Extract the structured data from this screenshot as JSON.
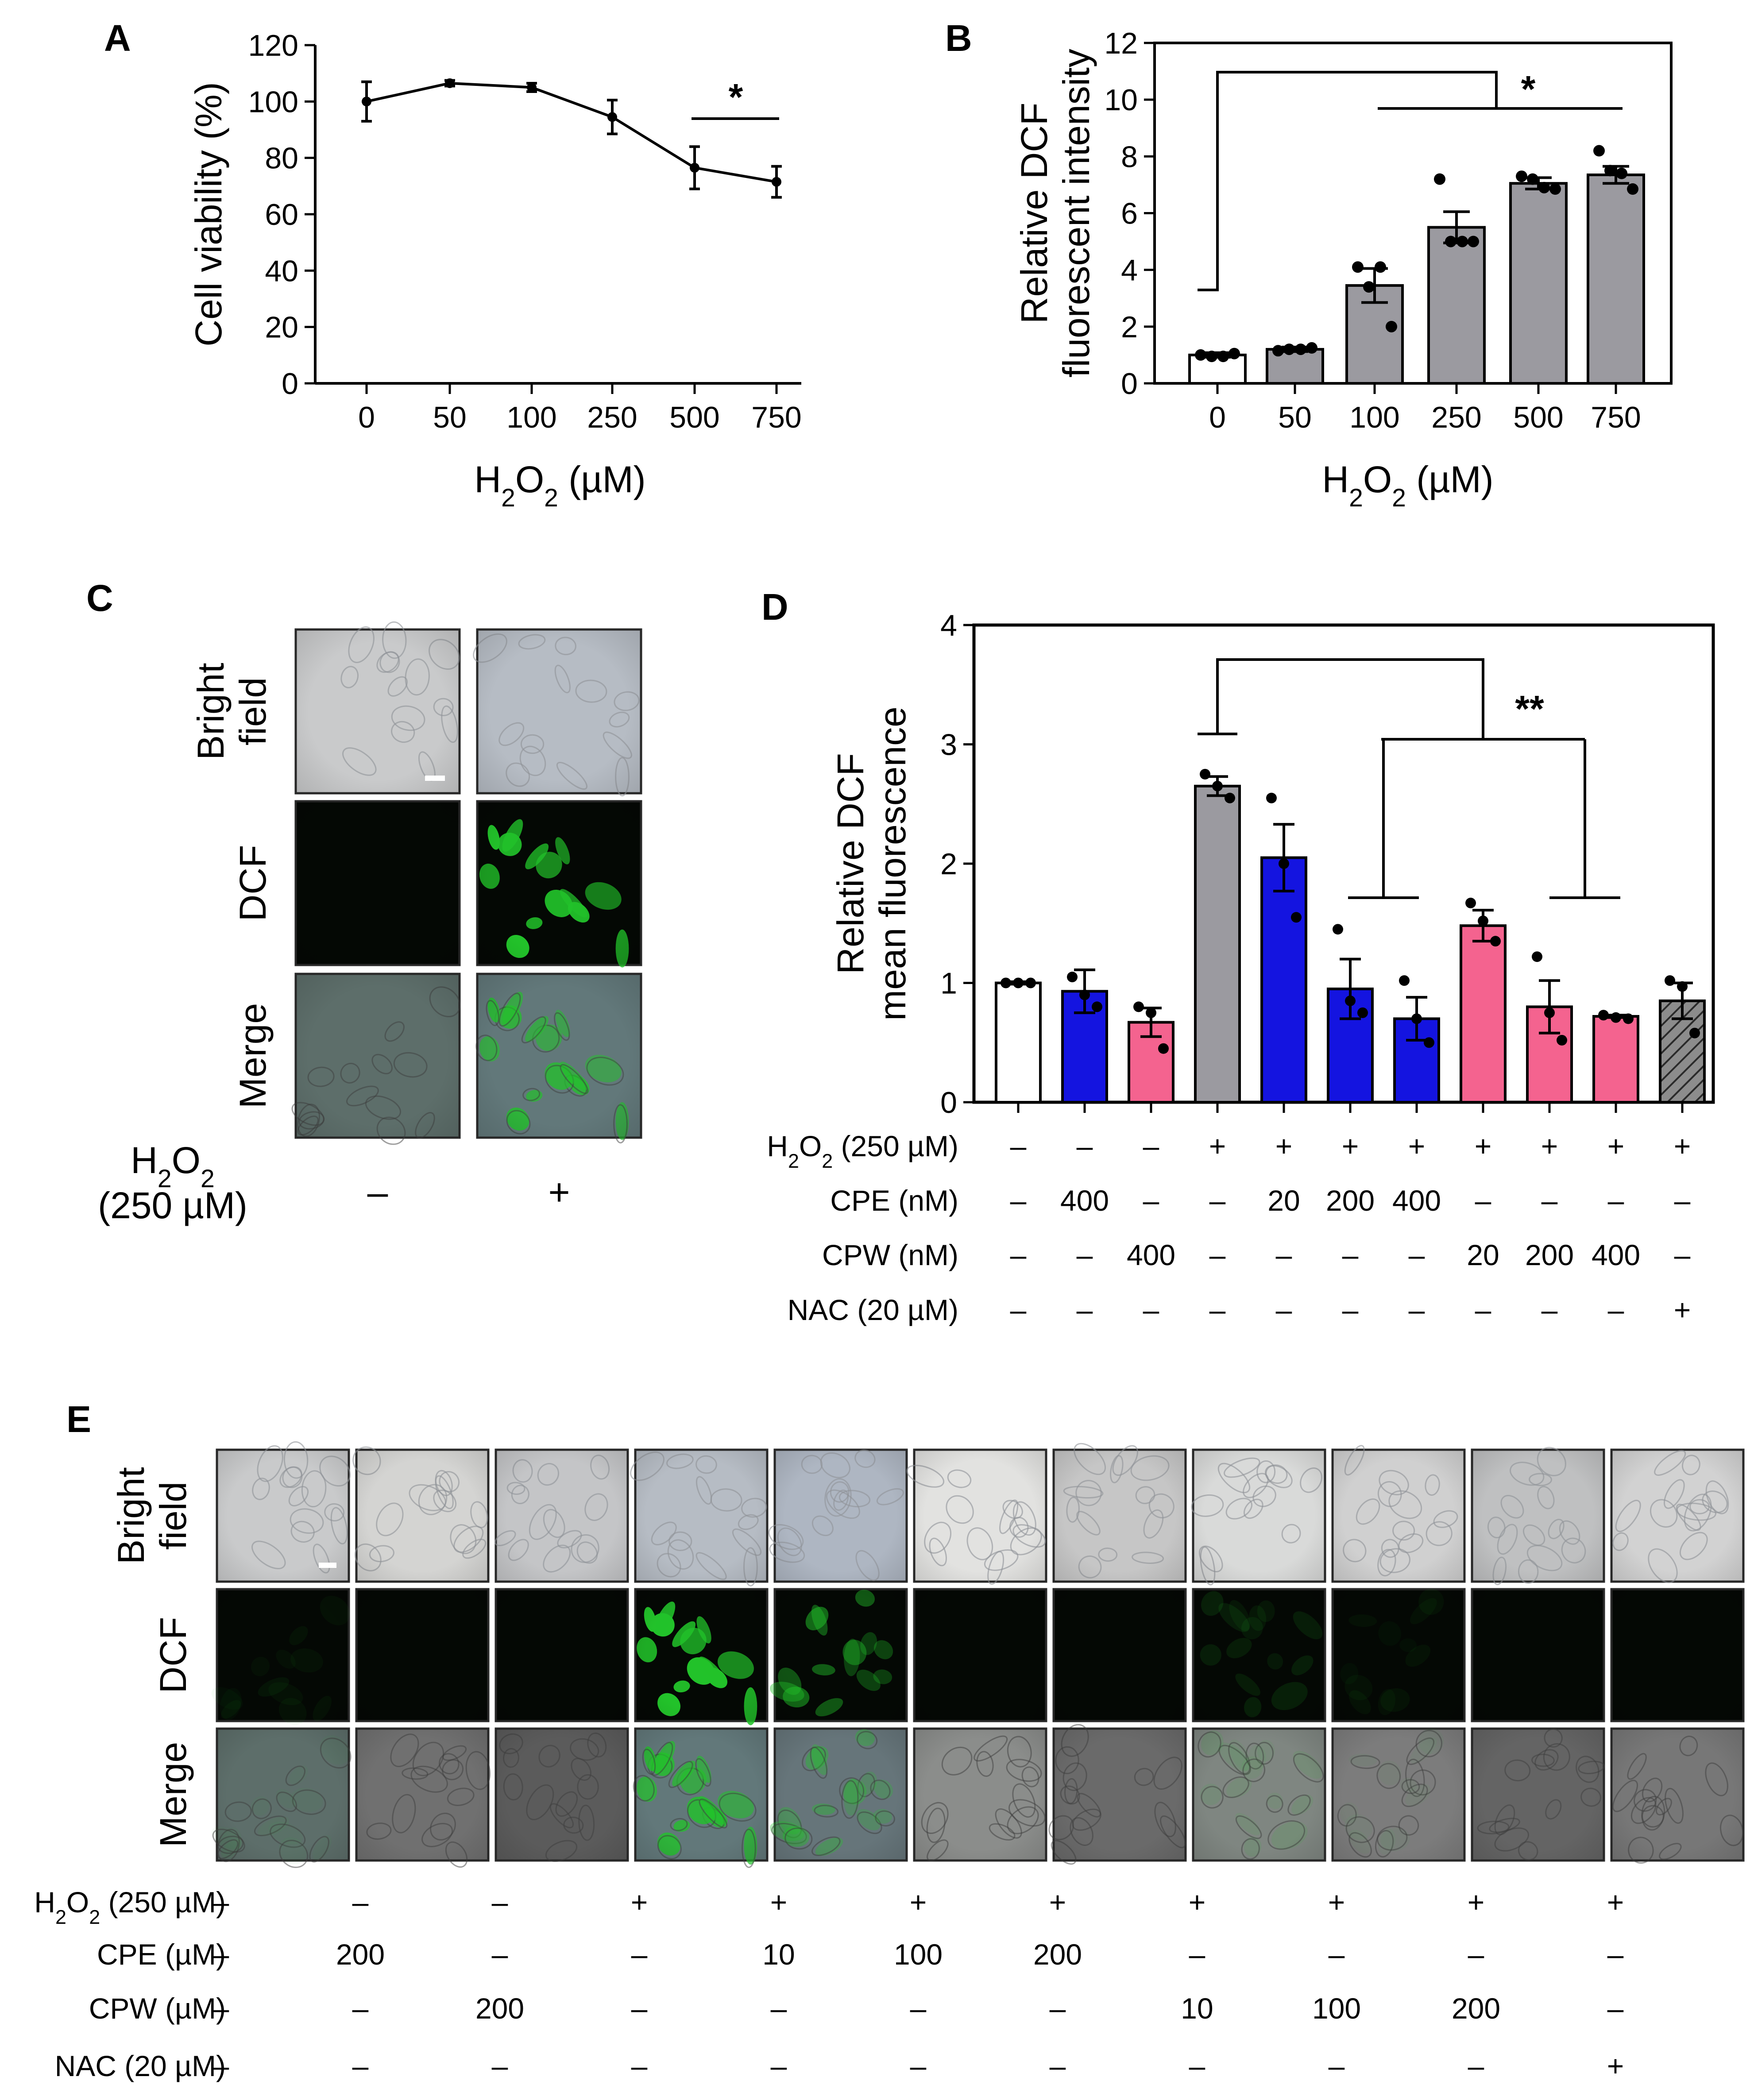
{
  "colors": {
    "white": "#ffffff",
    "grey": "#9b9aa0",
    "blue": "#1414e0",
    "pink": "#f4638f",
    "black": "#000000"
  },
  "panels": {
    "A": "A",
    "B": "B",
    "C": "C",
    "D": "D",
    "E": "E"
  },
  "chart_data": [
    {
      "panel": "A",
      "type": "line",
      "categories": [
        "0",
        "50",
        "100",
        "250",
        "500",
        "750"
      ],
      "values": [
        100,
        106.5,
        105,
        94.5,
        76.5,
        71.5
      ],
      "errors": [
        7,
        1,
        1.5,
        6,
        7.5,
        5.5
      ],
      "ylabel": "Cell viability (%)",
      "xlabel": {
        "pre": "H",
        "sub1": "2",
        "mid": "O",
        "sub2": "2",
        "post": " (µM)"
      },
      "yticks": [
        0,
        20,
        40,
        60,
        80,
        100,
        120
      ],
      "ylim": [
        0,
        120
      ],
      "significance": "*"
    },
    {
      "panel": "B",
      "type": "bar",
      "categories": [
        "0",
        "50",
        "100",
        "250",
        "500",
        "750"
      ],
      "values": [
        1.0,
        1.2,
        3.45,
        5.5,
        7.05,
        7.35
      ],
      "errors": [
        0.08,
        0.08,
        0.6,
        0.55,
        0.2,
        0.3
      ],
      "points": [
        [
          1.0,
          0.95,
          0.95,
          1.05
        ],
        [
          1.15,
          1.2,
          1.2,
          1.25
        ],
        [
          4.1,
          3.4,
          4.1,
          2.0
        ],
        [
          7.2,
          5.0,
          5.0,
          5.0
        ],
        [
          7.3,
          7.2,
          6.9,
          6.85
        ],
        [
          8.2,
          7.5,
          7.4,
          6.85
        ]
      ],
      "bar_colors": [
        "white",
        "grey",
        "grey",
        "grey",
        "grey",
        "grey"
      ],
      "ylabel_line1": "Relative DCF",
      "ylabel_line2": "fluorescent intensity",
      "xlabel": {
        "pre": "H",
        "sub1": "2",
        "mid": "O",
        "sub2": "2",
        "post": " (µM)"
      },
      "yticks": [
        0,
        2,
        4,
        6,
        8,
        10,
        12
      ],
      "ylim": [
        0,
        12
      ],
      "significance": "*"
    },
    {
      "panel": "D",
      "type": "bar",
      "values": [
        1.0,
        0.93,
        0.67,
        2.65,
        2.05,
        0.95,
        0.7,
        1.48,
        0.8,
        0.72,
        0.85
      ],
      "errors": [
        0.01,
        0.18,
        0.12,
        0.08,
        0.28,
        0.25,
        0.18,
        0.13,
        0.22,
        0.01,
        0.15
      ],
      "points": [
        [
          1.0,
          1.0,
          1.0
        ],
        [
          1.05,
          0.9,
          0.8
        ],
        [
          0.8,
          0.75,
          0.45
        ],
        [
          2.75,
          2.65,
          2.55
        ],
        [
          2.55,
          2.0,
          1.55
        ],
        [
          1.45,
          0.85,
          0.75
        ],
        [
          1.02,
          0.7,
          0.5
        ],
        [
          1.67,
          1.52,
          1.35
        ],
        [
          1.22,
          0.75,
          0.52
        ],
        [
          0.73,
          0.71,
          0.7
        ],
        [
          1.02,
          0.97,
          0.58
        ]
      ],
      "bar_colors": [
        "white",
        "blue",
        "pink",
        "grey",
        "blue",
        "blue",
        "blue",
        "pink",
        "pink",
        "pink",
        "hatched"
      ],
      "ylabel_line1": "Relative DCF",
      "ylabel_line2": "mean fluorescence",
      "yticks": [
        0,
        1,
        2,
        3,
        4
      ],
      "ylim": [
        0,
        4
      ],
      "significance": "**",
      "table": [
        {
          "label": {
            "pre": "H",
            "sub1": "2",
            "mid": "O",
            "sub2": "2",
            "post": " (250 µM)"
          },
          "cells": [
            "–",
            "–",
            "–",
            "+",
            "+",
            "+",
            "+",
            "+",
            "+",
            "+",
            "+"
          ]
        },
        {
          "label": "CPE (nM)",
          "cells": [
            "–",
            "400",
            "–",
            "–",
            "20",
            "200",
            "400",
            "–",
            "–",
            "–",
            "–"
          ]
        },
        {
          "label": "CPW (nM)",
          "cells": [
            "–",
            "–",
            "400",
            "–",
            "–",
            "–",
            "–",
            "20",
            "200",
            "400",
            "–"
          ]
        },
        {
          "label": "NAC (20 µM)",
          "cells": [
            "–",
            "–",
            "–",
            "–",
            "–",
            "–",
            "–",
            "–",
            "–",
            "–",
            "+"
          ]
        }
      ]
    }
  ],
  "panel_c": {
    "rows": [
      [
        "Bright",
        "field"
      ],
      [
        "DCF"
      ],
      [
        "Merge"
      ]
    ],
    "treatment_label": {
      "pre": "H",
      "sub1": "2",
      "mid": "O",
      "sub2": "2",
      "post": "",
      "line2": "(250 µM)"
    },
    "columns": [
      "–",
      "+"
    ]
  },
  "panel_e": {
    "rows": [
      [
        "Bright",
        "field"
      ],
      [
        "DCF"
      ],
      [
        "Merge"
      ]
    ],
    "green_levels": [
      0.06,
      0.02,
      0.02,
      0.95,
      0.45,
      0.03,
      0.02,
      0.12,
      0.05,
      0.02,
      0.03
    ],
    "table": [
      {
        "label": {
          "pre": "H",
          "sub1": "2",
          "mid": "O",
          "sub2": "2",
          "post": " (250 µM)"
        },
        "cells": [
          "–",
          "–",
          "–",
          "+",
          "+",
          "+",
          "+",
          "+",
          "+",
          "+",
          "+"
        ]
      },
      {
        "label": "CPE (µM)",
        "cells": [
          "–",
          "200",
          "–",
          "–",
          "10",
          "100",
          "200",
          "–",
          "–",
          "–",
          "–"
        ]
      },
      {
        "label": "CPW (µM)",
        "cells": [
          "–",
          "–",
          "200",
          "–",
          "–",
          "–",
          "–",
          "10",
          "100",
          "200",
          "–"
        ]
      },
      {
        "label": "NAC (20 µM)",
        "cells": [
          "–",
          "–",
          "–",
          "–",
          "–",
          "–",
          "–",
          "–",
          "–",
          "–",
          "+"
        ]
      }
    ]
  }
}
